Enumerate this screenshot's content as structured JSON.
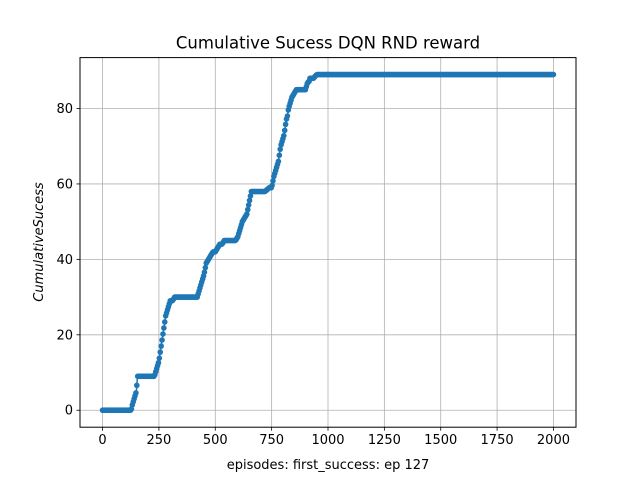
{
  "chart_data": {
    "type": "scatter",
    "title": "Cumulative Sucess DQN RND reward",
    "xlabel": "episodes: first_success: ep 127",
    "ylabel": "CumulativeSucess",
    "xlim": [
      -100,
      2100
    ],
    "ylim": [
      -4.5,
      93.5
    ],
    "xticks": [
      0,
      250,
      500,
      750,
      1000,
      1250,
      1500,
      1750,
      2000
    ],
    "yticks": [
      0,
      20,
      40,
      60,
      80
    ],
    "xtick_labels": [
      "0",
      "250",
      "500",
      "750",
      "1000",
      "1250",
      "1500",
      "1750",
      "2000"
    ],
    "ytick_labels": [
      "0",
      "20",
      "40",
      "60",
      "80"
    ],
    "grid": true,
    "marker": "circle",
    "color": "#1f77b4",
    "series": [
      {
        "x": [
          0,
          127,
          130,
          135,
          140,
          145,
          150,
          155,
          230,
          235,
          240,
          245,
          250,
          255,
          260,
          265,
          270,
          275,
          280,
          285,
          290,
          295,
          300,
          305,
          310,
          320,
          330,
          340,
          420,
          425,
          430,
          435,
          440,
          445,
          450,
          460,
          470,
          480,
          490,
          500,
          510,
          520,
          530,
          540,
          590,
          600,
          605,
          610,
          615,
          620,
          630,
          640,
          650,
          660,
          680,
          700,
          720,
          740,
          750,
          760,
          770,
          775,
          780,
          785,
          790,
          795,
          800,
          805,
          810,
          815,
          820,
          825,
          830,
          835,
          840,
          850,
          860,
          870,
          880,
          900,
          905,
          910,
          915,
          920,
          925,
          930,
          935,
          950,
          960,
          970,
          980,
          1000,
          2000
        ],
        "y": [
          0,
          0,
          1,
          2,
          3,
          4,
          5,
          9,
          9,
          10,
          11,
          12,
          13,
          15,
          17,
          19,
          21,
          23,
          25,
          26,
          27,
          28,
          29,
          29,
          29,
          30,
          30,
          30,
          30,
          31,
          32,
          33,
          34,
          35,
          36,
          39,
          40,
          41,
          42,
          42,
          43,
          44,
          44,
          45,
          45,
          46,
          47,
          48,
          49,
          50,
          51,
          52,
          55,
          58,
          58,
          58,
          58,
          59,
          59,
          62,
          64,
          65,
          66,
          68,
          70,
          71,
          72,
          73,
          75,
          77,
          78,
          80,
          81,
          82,
          83,
          84,
          85,
          85,
          85,
          85,
          86,
          87,
          87,
          88,
          88,
          88,
          88,
          89,
          89,
          89,
          89,
          89,
          89
        ]
      }
    ]
  }
}
